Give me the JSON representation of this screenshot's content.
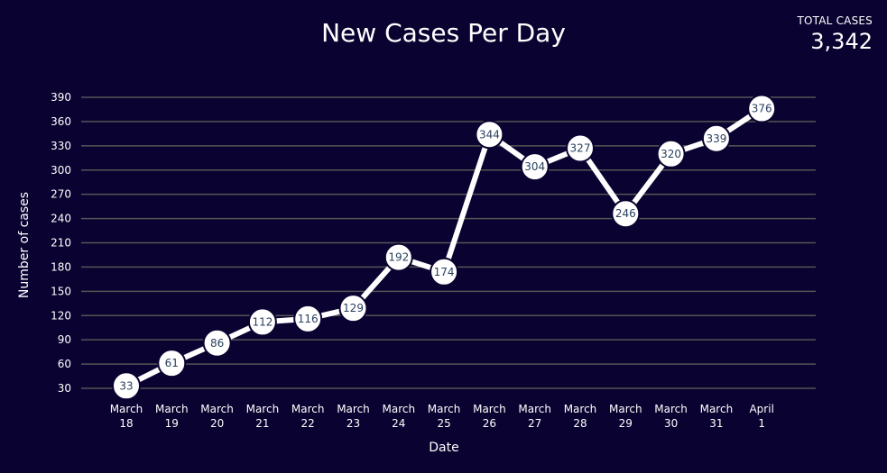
{
  "header": {
    "total_label": "TOTAL CASES",
    "total_value": "3,342"
  },
  "colors": {
    "background": "#0a0230",
    "line": "#ffffff",
    "marker_fill": "#ffffff",
    "marker_text": "#2a3f5f",
    "grid": "#555555"
  },
  "chart_data": {
    "type": "line",
    "title": "New Cases Per Day",
    "xlabel": "Date",
    "ylabel": "Number of cases",
    "categories": [
      [
        "March",
        "18"
      ],
      [
        "March",
        "19"
      ],
      [
        "March",
        "20"
      ],
      [
        "March",
        "21"
      ],
      [
        "March",
        "22"
      ],
      [
        "March",
        "23"
      ],
      [
        "March",
        "24"
      ],
      [
        "March",
        "25"
      ],
      [
        "March",
        "26"
      ],
      [
        "March",
        "27"
      ],
      [
        "March",
        "28"
      ],
      [
        "March",
        "29"
      ],
      [
        "March",
        "30"
      ],
      [
        "March",
        "31"
      ],
      [
        "April",
        "1"
      ]
    ],
    "values": [
      33,
      61,
      86,
      112,
      116,
      129,
      192,
      174,
      344,
      304,
      327,
      246,
      320,
      339,
      376
    ],
    "yticks": [
      30,
      60,
      90,
      120,
      150,
      180,
      210,
      240,
      270,
      300,
      330,
      360,
      390
    ],
    "ylim": [
      30,
      390
    ],
    "grid": true,
    "markers": true,
    "data_labels": true
  }
}
